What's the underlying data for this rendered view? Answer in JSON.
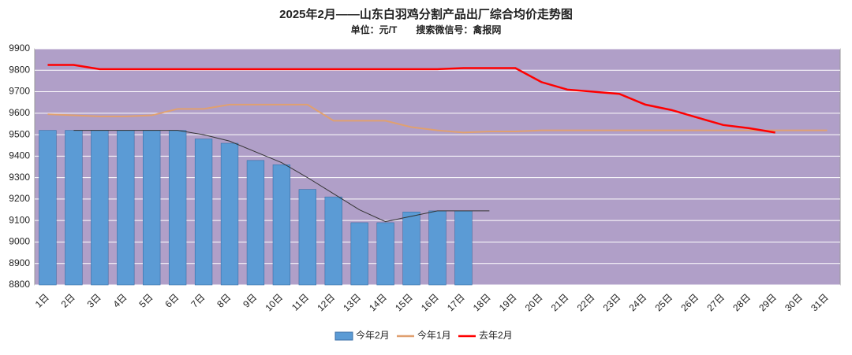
{
  "chart_data": {
    "type": "bar_line",
    "title": "2025年2月——山东白羽鸡分割产品出厂综合均价走势图",
    "subtitle": "单位：元/T　　搜索微信号：禽报网",
    "categories": [
      "1日",
      "2日",
      "3日",
      "4日",
      "5日",
      "6日",
      "7日",
      "8日",
      "9日",
      "10日",
      "11日",
      "12日",
      "13日",
      "14日",
      "15日",
      "16日",
      "17日",
      "18日",
      "19日",
      "20日",
      "21日",
      "22日",
      "23日",
      "24日",
      "25日",
      "26日",
      "27日",
      "28日",
      "29日",
      "30日",
      "31日"
    ],
    "ylim": [
      8800,
      9900
    ],
    "yticks": [
      8800,
      8900,
      9000,
      9100,
      9200,
      9300,
      9400,
      9500,
      9600,
      9700,
      9800,
      9900
    ],
    "grid": true,
    "legend": "bottom",
    "series": [
      {
        "name": "今年2月",
        "kind": "bar",
        "color": "#5b9bd5",
        "values": [
          9520,
          9520,
          9520,
          9520,
          9520,
          9520,
          9480,
          9460,
          9380,
          9360,
          9245,
          9210,
          9090,
          9090,
          9140,
          9145,
          9145,
          null,
          null,
          null,
          null,
          null,
          null,
          null,
          null,
          null,
          null,
          null,
          null,
          null,
          null
        ]
      },
      {
        "name": "今年1月",
        "kind": "line",
        "color": "#e0a070",
        "values": [
          9595,
          9590,
          9585,
          9585,
          9590,
          9620,
          9620,
          9640,
          9640,
          9640,
          9640,
          9565,
          9565,
          9565,
          9535,
          9520,
          9510,
          9515,
          9515,
          9520,
          9520,
          9520,
          9520,
          9520,
          9520,
          9520,
          9520,
          9520,
          9520,
          9520,
          9520
        ]
      },
      {
        "name": "去年2月",
        "kind": "line",
        "color": "#ff0000",
        "values": [
          9825,
          9825,
          9805,
          9805,
          9805,
          9805,
          9805,
          9805,
          9805,
          9805,
          9805,
          9805,
          9805,
          9805,
          9805,
          9805,
          9810,
          9810,
          9810,
          9745,
          9710,
          9700,
          9690,
          9640,
          9615,
          9580,
          9545,
          9530,
          9510,
          null,
          null
        ]
      },
      {
        "kind": "line",
        "color": "#333333",
        "values": [
          null,
          9520,
          9520,
          9520,
          9520,
          9520,
          9500,
          9470,
          9420,
          9370,
          9300,
          9225,
          9150,
          9095,
          9120,
          9145,
          9145,
          9145,
          null,
          null,
          null,
          null,
          null,
          null,
          null,
          null,
          null,
          null,
          null,
          null,
          null
        ]
      }
    ]
  }
}
